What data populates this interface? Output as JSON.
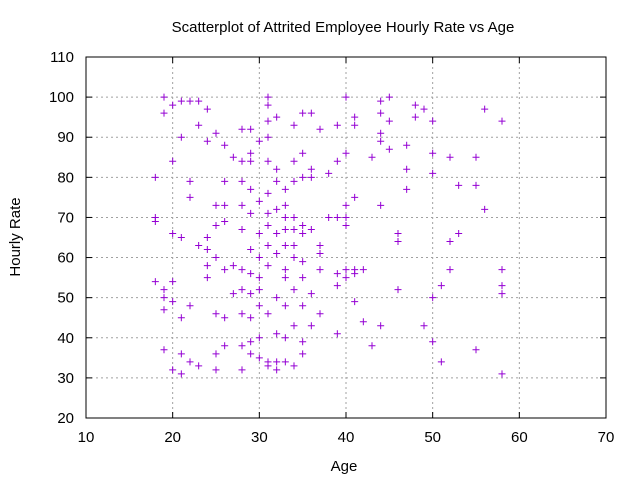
{
  "chart_data": {
    "type": "scatter",
    "title": "Scatterplot of Attrited Employee Hourly Rate vs Age",
    "xlabel": "Age",
    "ylabel": "Hourly Rate",
    "xlim": [
      10,
      70
    ],
    "ylim": [
      20,
      110
    ],
    "xticks": [
      10,
      20,
      30,
      40,
      50,
      60,
      70
    ],
    "yticks": [
      20,
      30,
      40,
      50,
      60,
      70,
      80,
      90,
      100,
      110
    ],
    "grid": true,
    "marker": "plus",
    "color": "#9400d3",
    "points": [
      [
        18,
        80
      ],
      [
        18,
        70
      ],
      [
        18,
        69
      ],
      [
        18,
        54
      ],
      [
        19,
        100
      ],
      [
        19,
        96
      ],
      [
        19,
        52
      ],
      [
        19,
        50
      ],
      [
        19,
        47
      ],
      [
        19,
        37
      ],
      [
        20,
        98
      ],
      [
        20,
        84
      ],
      [
        20,
        66
      ],
      [
        20,
        54
      ],
      [
        20,
        49
      ],
      [
        20,
        32
      ],
      [
        21,
        99
      ],
      [
        21,
        90
      ],
      [
        21,
        65
      ],
      [
        21,
        45
      ],
      [
        21,
        36
      ],
      [
        21,
        31
      ],
      [
        22,
        99
      ],
      [
        22,
        79
      ],
      [
        22,
        75
      ],
      [
        22,
        48
      ],
      [
        22,
        34
      ],
      [
        23,
        99
      ],
      [
        23,
        93
      ],
      [
        23,
        63
      ],
      [
        23,
        33
      ],
      [
        24,
        97
      ],
      [
        24,
        89
      ],
      [
        24,
        65
      ],
      [
        24,
        62
      ],
      [
        24,
        58
      ],
      [
        24,
        55
      ],
      [
        25,
        91
      ],
      [
        25,
        73
      ],
      [
        25,
        68
      ],
      [
        25,
        60
      ],
      [
        25,
        46
      ],
      [
        25,
        36
      ],
      [
        25,
        32
      ],
      [
        26,
        88
      ],
      [
        26,
        79
      ],
      [
        26,
        73
      ],
      [
        26,
        69
      ],
      [
        26,
        57
      ],
      [
        26,
        45
      ],
      [
        26,
        38
      ],
      [
        27,
        85
      ],
      [
        27,
        58
      ],
      [
        27,
        51
      ],
      [
        28,
        92
      ],
      [
        28,
        84
      ],
      [
        28,
        79
      ],
      [
        28,
        73
      ],
      [
        28,
        67
      ],
      [
        28,
        57
      ],
      [
        28,
        52
      ],
      [
        28,
        46
      ],
      [
        28,
        38
      ],
      [
        28,
        32
      ],
      [
        29,
        92
      ],
      [
        29,
        86
      ],
      [
        29,
        84
      ],
      [
        29,
        77
      ],
      [
        29,
        71
      ],
      [
        29,
        62
      ],
      [
        29,
        56
      ],
      [
        29,
        51
      ],
      [
        29,
        45
      ],
      [
        29,
        39
      ],
      [
        29,
        36
      ],
      [
        30,
        89
      ],
      [
        30,
        74
      ],
      [
        30,
        66
      ],
      [
        30,
        60
      ],
      [
        30,
        55
      ],
      [
        30,
        52
      ],
      [
        30,
        48
      ],
      [
        30,
        40
      ],
      [
        30,
        35
      ],
      [
        31,
        100
      ],
      [
        31,
        98
      ],
      [
        31,
        94
      ],
      [
        31,
        90
      ],
      [
        31,
        84
      ],
      [
        31,
        76
      ],
      [
        31,
        71
      ],
      [
        31,
        68
      ],
      [
        31,
        63
      ],
      [
        31,
        58
      ],
      [
        31,
        46
      ],
      [
        31,
        34
      ],
      [
        31,
        33
      ],
      [
        32,
        95
      ],
      [
        32,
        82
      ],
      [
        32,
        79
      ],
      [
        32,
        72
      ],
      [
        32,
        66
      ],
      [
        32,
        61
      ],
      [
        32,
        50
      ],
      [
        32,
        41
      ],
      [
        32,
        34
      ],
      [
        32,
        32
      ],
      [
        33,
        77
      ],
      [
        33,
        73
      ],
      [
        33,
        70
      ],
      [
        33,
        67
      ],
      [
        33,
        63
      ],
      [
        33,
        57
      ],
      [
        33,
        55
      ],
      [
        33,
        48
      ],
      [
        33,
        40
      ],
      [
        33,
        34
      ],
      [
        34,
        93
      ],
      [
        34,
        84
      ],
      [
        34,
        79
      ],
      [
        34,
        70
      ],
      [
        34,
        67
      ],
      [
        34,
        63
      ],
      [
        34,
        60
      ],
      [
        34,
        52
      ],
      [
        34,
        43
      ],
      [
        34,
        33
      ],
      [
        35,
        96
      ],
      [
        35,
        86
      ],
      [
        35,
        80
      ],
      [
        35,
        68
      ],
      [
        35,
        66
      ],
      [
        35,
        59
      ],
      [
        35,
        55
      ],
      [
        35,
        48
      ],
      [
        35,
        39
      ],
      [
        35,
        36
      ],
      [
        36,
        96
      ],
      [
        36,
        82
      ],
      [
        36,
        80
      ],
      [
        36,
        67
      ],
      [
        36,
        51
      ],
      [
        36,
        43
      ],
      [
        37,
        92
      ],
      [
        37,
        63
      ],
      [
        37,
        61
      ],
      [
        37,
        57
      ],
      [
        37,
        46
      ],
      [
        38,
        81
      ],
      [
        38,
        70
      ],
      [
        39,
        93
      ],
      [
        39,
        84
      ],
      [
        39,
        70
      ],
      [
        39,
        56
      ],
      [
        39,
        53
      ],
      [
        39,
        41
      ],
      [
        40,
        100
      ],
      [
        40,
        86
      ],
      [
        40,
        73
      ],
      [
        40,
        70
      ],
      [
        40,
        68
      ],
      [
        40,
        57
      ],
      [
        40,
        55
      ],
      [
        41,
        95
      ],
      [
        41,
        93
      ],
      [
        41,
        75
      ],
      [
        41,
        57
      ],
      [
        41,
        56
      ],
      [
        41,
        49
      ],
      [
        42,
        57
      ],
      [
        42,
        44
      ],
      [
        43,
        85
      ],
      [
        43,
        38
      ],
      [
        44,
        99
      ],
      [
        44,
        96
      ],
      [
        44,
        91
      ],
      [
        44,
        89
      ],
      [
        44,
        73
      ],
      [
        44,
        43
      ],
      [
        45,
        100
      ],
      [
        45,
        94
      ],
      [
        45,
        87
      ],
      [
        46,
        66
      ],
      [
        46,
        64
      ],
      [
        46,
        52
      ],
      [
        47,
        88
      ],
      [
        47,
        82
      ],
      [
        47,
        77
      ],
      [
        48,
        98
      ],
      [
        48,
        95
      ],
      [
        49,
        97
      ],
      [
        49,
        43
      ],
      [
        50,
        94
      ],
      [
        50,
        86
      ],
      [
        50,
        81
      ],
      [
        50,
        50
      ],
      [
        50,
        39
      ],
      [
        51,
        53
      ],
      [
        51,
        34
      ],
      [
        52,
        85
      ],
      [
        52,
        64
      ],
      [
        52,
        57
      ],
      [
        53,
        78
      ],
      [
        53,
        66
      ],
      [
        55,
        85
      ],
      [
        55,
        78
      ],
      [
        55,
        37
      ],
      [
        56,
        97
      ],
      [
        56,
        72
      ],
      [
        58,
        94
      ],
      [
        58,
        57
      ],
      [
        58,
        53
      ],
      [
        58,
        51
      ],
      [
        58,
        31
      ]
    ]
  }
}
